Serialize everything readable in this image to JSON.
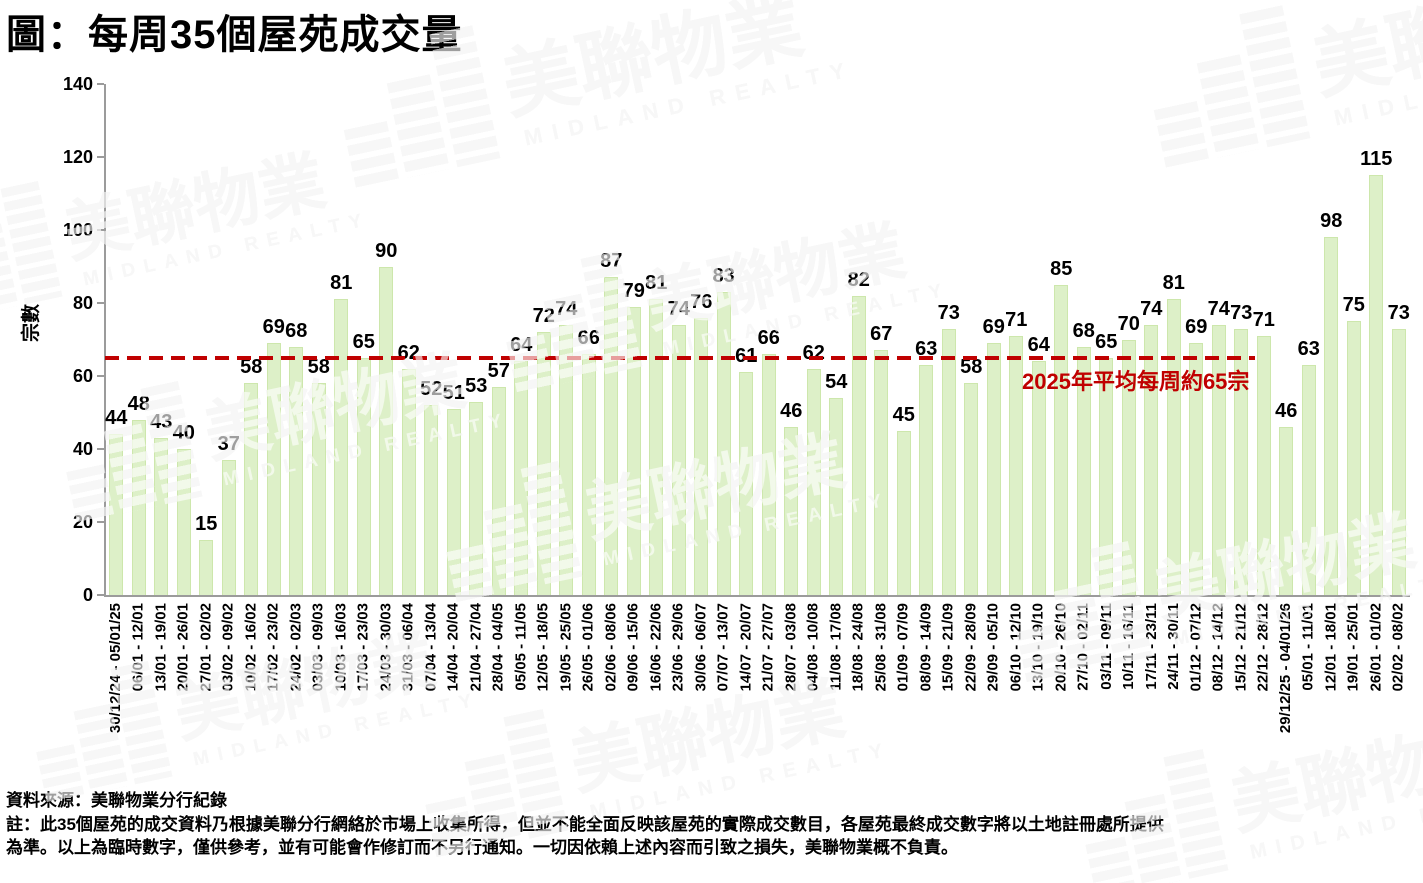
{
  "title": "圖：每周35個屋苑成交量",
  "watermark": {
    "cn": "美聯物業",
    "en": "MIDLAND REALTY"
  },
  "chart_data": {
    "type": "bar",
    "title": "圖：每周35個屋苑成交量",
    "xlabel": "",
    "ylabel": "宗數",
    "ylim": [
      0,
      140
    ],
    "yticks": [
      0,
      20,
      40,
      60,
      80,
      100,
      120,
      140
    ],
    "grid": "off",
    "legend": "none",
    "bar_color": "#ddf0c8",
    "bar_border_color": "#cde7ac",
    "data_label_color": "#000000",
    "categories": [
      "30/12/24 - 05/01/25",
      "06/01 - 12/01",
      "13/01 - 19/01",
      "20/01 - 26/01",
      "27/01 - 02/02",
      "03/02 - 09/02",
      "10/02 - 16/02",
      "17/02 - 23/02",
      "24/02 - 02/03",
      "03/03 - 09/03",
      "10/03 - 16/03",
      "17/03 - 23/03",
      "24/03 - 30/03",
      "31/03 - 06/04",
      "07/04 - 13/04",
      "14/04 - 20/04",
      "21/04 - 27/04",
      "28/04 - 04/05",
      "05/05 - 11/05",
      "12/05 - 18/05",
      "19/05 - 25/05",
      "26/05 - 01/06",
      "02/06 - 08/06",
      "09/06 - 15/06",
      "16/06 - 22/06",
      "23/06 - 29/06",
      "30/06 - 06/07",
      "07/07 - 13/07",
      "14/07 - 20/07",
      "21/07 - 27/07",
      "28/07 - 03/08",
      "04/08 - 10/08",
      "11/08 - 17/08",
      "18/08 - 24/08",
      "25/08 - 31/08",
      "01/09 - 07/09",
      "08/09 - 14/09",
      "15/09 - 21/09",
      "22/09 - 28/09",
      "29/09 - 05/10",
      "06/10 - 12/10",
      "13/10 - 19/10",
      "20/10 - 26/10",
      "27/10 - 02/11",
      "03/11 - 09/11",
      "10/11 - 16/11",
      "17/11 - 23/11",
      "24/11 - 30/11",
      "01/12 - 07/12",
      "08/12 - 14/12",
      "15/12 - 21/12",
      "22/12 - 28/12",
      "29/12/25 - 04/01/26",
      "05/01 - 11/01",
      "12/01 - 18/01",
      "19/01 - 25/01",
      "26/01 - 01/02",
      "02/02 - 08/02"
    ],
    "values": [
      44,
      48,
      43,
      40,
      15,
      37,
      58,
      69,
      68,
      58,
      81,
      65,
      90,
      62,
      52,
      51,
      53,
      57,
      64,
      72,
      74,
      66,
      87,
      79,
      81,
      74,
      76,
      83,
      61,
      66,
      46,
      62,
      54,
      82,
      67,
      45,
      63,
      73,
      58,
      69,
      71,
      64,
      85,
      68,
      65,
      70,
      74,
      81,
      69,
      74,
      73,
      71,
      46,
      63,
      98,
      75,
      115,
      73
    ],
    "average_line": {
      "value": 65,
      "color": "#c00000",
      "label": "2025年平均每周約65宗"
    }
  },
  "footer": {
    "source": "資料來源：美聯物業分行紀錄",
    "note_line1": "註：此35個屋苑的成交資料乃根據美聯分行網絡於市場上收集所得，但並不能全面反映該屋苑的實際成交數目，各屋苑最終成交數字將以土地註冊處所提供",
    "note_line2": "為準。以上為臨時數字，僅供參考，並有可能會作修訂而不另行通知。一切因依賴上述內容而引致之損失，美聯物業概不負責。"
  }
}
